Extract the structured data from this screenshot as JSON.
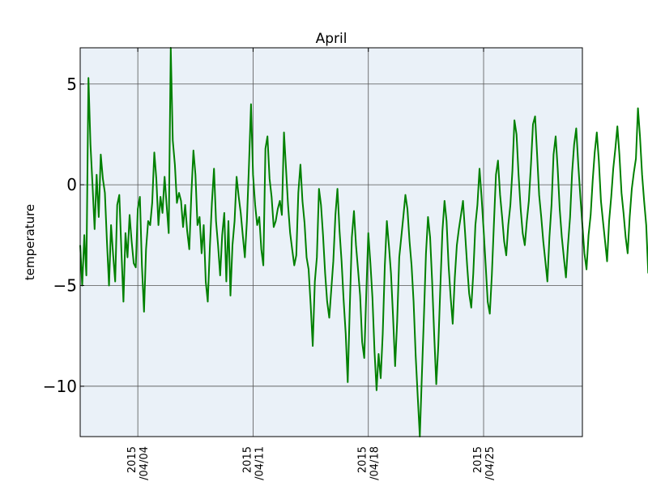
{
  "chart_data": {
    "type": "line",
    "title": "April",
    "xlabel": "",
    "ylabel": "temperature",
    "ylim": [
      -12.5,
      6.8
    ],
    "xlim": [
      "2015-03-31T12:00",
      "2015-05-01T00:00"
    ],
    "grid": true,
    "colors": {
      "background": "#eaf1f8",
      "line": "#008000",
      "grid": "#555555"
    },
    "yticks": [
      {
        "value": 5,
        "label": "5"
      },
      {
        "value": 0,
        "label": "0"
      },
      {
        "value": -5,
        "label": "−5"
      },
      {
        "value": -10,
        "label": "−10"
      }
    ],
    "xticks": [
      {
        "value": "2015-04-04",
        "label": [
          "2015",
          "/04/04"
        ]
      },
      {
        "value": "2015-04-11",
        "label": [
          "2015",
          "/04/11"
        ]
      },
      {
        "value": "2015-04-18",
        "label": [
          "2015",
          "/04/18"
        ]
      },
      {
        "value": "2015-04-25",
        "label": [
          "2015",
          "/04/25"
        ]
      }
    ],
    "series": [
      {
        "name": "",
        "x_start": "2015-03-31T12:00",
        "x_step_hours": 3,
        "values": [
          -3.0,
          -5.0,
          -2.5,
          -4.5,
          5.3,
          2.0,
          0.0,
          -2.2,
          0.5,
          -1.6,
          1.5,
          0.3,
          -0.4,
          -2.8,
          -5.0,
          -2.0,
          -3.5,
          -4.8,
          -1.0,
          -0.5,
          -3.2,
          -5.8,
          -2.4,
          -3.6,
          -1.5,
          -2.8,
          -3.9,
          -4.1,
          -1.2,
          -0.6,
          -4.0,
          -6.3,
          -3.2,
          -1.8,
          -2.0,
          -0.9,
          1.6,
          0.3,
          -2.0,
          -0.6,
          -1.4,
          0.4,
          -1.0,
          -2.4,
          6.8,
          2.2,
          1.0,
          -0.9,
          -0.4,
          -0.8,
          -2.1,
          -1.0,
          -2.3,
          -3.2,
          -0.5,
          1.7,
          0.5,
          -2.0,
          -1.6,
          -3.4,
          -2.0,
          -4.8,
          -5.8,
          -3.1,
          -0.9,
          0.8,
          -1.8,
          -3.0,
          -4.5,
          -2.5,
          -1.4,
          -4.8,
          -1.8,
          -5.5,
          -3.0,
          -1.8,
          0.4,
          -0.6,
          -1.4,
          -2.5,
          -3.6,
          -1.8,
          1.0,
          4.0,
          0.5,
          -1.0,
          -2.0,
          -1.6,
          -3.2,
          -4.0,
          1.8,
          2.4,
          0.3,
          -0.6,
          -2.1,
          -1.8,
          -1.2,
          -0.8,
          -1.5,
          2.6,
          0.8,
          -1.0,
          -2.4,
          -3.2,
          -4.0,
          -3.5,
          -0.4,
          1.0,
          -0.8,
          -1.9,
          -3.6,
          -4.2,
          -6.0,
          -8.0,
          -4.8,
          -3.6,
          -0.2,
          -1.0,
          -2.5,
          -4.4,
          -5.8,
          -6.6,
          -5.2,
          -3.8,
          -1.5,
          -0.2,
          -2.3,
          -3.8,
          -5.7,
          -7.4,
          -9.8,
          -6.0,
          -2.6,
          -1.3,
          -3.0,
          -4.2,
          -5.5,
          -7.8,
          -8.6,
          -5.4,
          -2.4,
          -3.9,
          -5.6,
          -8.3,
          -10.2,
          -8.4,
          -9.6,
          -7.4,
          -4.0,
          -1.8,
          -3.0,
          -4.4,
          -6.5,
          -9.0,
          -6.8,
          -3.6,
          -2.6,
          -1.6,
          -0.5,
          -1.2,
          -2.8,
          -4.0,
          -5.8,
          -8.5,
          -10.5,
          -12.5,
          -9.5,
          -6.6,
          -3.4,
          -1.6,
          -2.6,
          -4.8,
          -7.4,
          -9.9,
          -8.0,
          -5.0,
          -2.3,
          -0.8,
          -1.8,
          -4.0,
          -5.6,
          -6.9,
          -4.6,
          -3.0,
          -2.2,
          -1.5,
          -0.8,
          -2.4,
          -4.0,
          -5.4,
          -6.1,
          -4.4,
          -2.0,
          -1.0,
          0.8,
          -0.6,
          -2.2,
          -4.0,
          -5.8,
          -6.4,
          -4.5,
          -2.0,
          0.5,
          1.2,
          -0.5,
          -1.6,
          -2.8,
          -3.5,
          -2.0,
          -1.0,
          0.7,
          3.2,
          2.5,
          0.5,
          -1.2,
          -2.4,
          -3.0,
          -1.8,
          -0.8,
          1.0,
          3.0,
          3.4,
          1.5,
          -0.5,
          -1.6,
          -2.8,
          -3.8,
          -4.8,
          -2.6,
          -1.0,
          1.5,
          2.4,
          0.8,
          -1.2,
          -2.6,
          -3.6,
          -4.6,
          -3.0,
          -1.6,
          0.6,
          2.0,
          2.8,
          1.0,
          -0.6,
          -2.0,
          -3.4,
          -4.2,
          -2.5,
          -1.5,
          0.2,
          1.6,
          2.6,
          1.2,
          -0.8,
          -1.8,
          -2.8,
          -3.8,
          -1.8,
          -0.6,
          0.8,
          1.8,
          2.9,
          1.5,
          -0.4,
          -1.4,
          -2.6,
          -3.4,
          -1.6,
          -0.2,
          0.6,
          1.3,
          3.8,
          2.4,
          0.5,
          -0.8,
          -2.0,
          -4.4
        ]
      }
    ]
  }
}
